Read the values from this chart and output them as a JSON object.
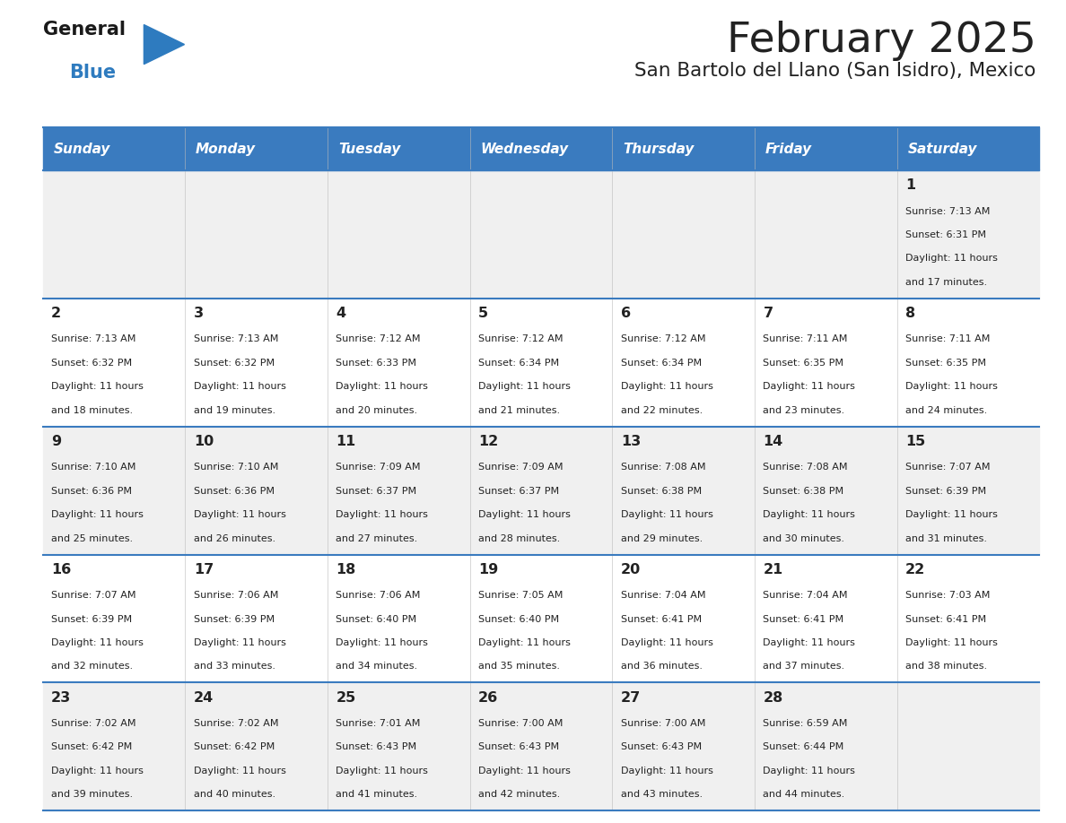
{
  "title": "February 2025",
  "subtitle": "San Bartolo del Llano (San Isidro), Mexico",
  "header_bg": "#3a7bbf",
  "header_text": "#ffffff",
  "header_days": [
    "Sunday",
    "Monday",
    "Tuesday",
    "Wednesday",
    "Thursday",
    "Friday",
    "Saturday"
  ],
  "row_bg_odd": "#f0f0f0",
  "row_bg_even": "#ffffff",
  "divider_color": "#3a7bbf",
  "text_color": "#222222",
  "logo_general_color": "#1a1a1a",
  "logo_blue_color": "#2e7bbf",
  "num_cols": 7,
  "num_rows": 5,
  "calendar": [
    [
      null,
      null,
      null,
      null,
      null,
      null,
      {
        "day": 1,
        "sunrise": "7:13 AM",
        "sunset": "6:31 PM",
        "daylight": "11 hours",
        "daylight2": "and 17 minutes."
      }
    ],
    [
      {
        "day": 2,
        "sunrise": "7:13 AM",
        "sunset": "6:32 PM",
        "daylight": "11 hours",
        "daylight2": "and 18 minutes."
      },
      {
        "day": 3,
        "sunrise": "7:13 AM",
        "sunset": "6:32 PM",
        "daylight": "11 hours",
        "daylight2": "and 19 minutes."
      },
      {
        "day": 4,
        "sunrise": "7:12 AM",
        "sunset": "6:33 PM",
        "daylight": "11 hours",
        "daylight2": "and 20 minutes."
      },
      {
        "day": 5,
        "sunrise": "7:12 AM",
        "sunset": "6:34 PM",
        "daylight": "11 hours",
        "daylight2": "and 21 minutes."
      },
      {
        "day": 6,
        "sunrise": "7:12 AM",
        "sunset": "6:34 PM",
        "daylight": "11 hours",
        "daylight2": "and 22 minutes."
      },
      {
        "day": 7,
        "sunrise": "7:11 AM",
        "sunset": "6:35 PM",
        "daylight": "11 hours",
        "daylight2": "and 23 minutes."
      },
      {
        "day": 8,
        "sunrise": "7:11 AM",
        "sunset": "6:35 PM",
        "daylight": "11 hours",
        "daylight2": "and 24 minutes."
      }
    ],
    [
      {
        "day": 9,
        "sunrise": "7:10 AM",
        "sunset": "6:36 PM",
        "daylight": "11 hours",
        "daylight2": "and 25 minutes."
      },
      {
        "day": 10,
        "sunrise": "7:10 AM",
        "sunset": "6:36 PM",
        "daylight": "11 hours",
        "daylight2": "and 26 minutes."
      },
      {
        "day": 11,
        "sunrise": "7:09 AM",
        "sunset": "6:37 PM",
        "daylight": "11 hours",
        "daylight2": "and 27 minutes."
      },
      {
        "day": 12,
        "sunrise": "7:09 AM",
        "sunset": "6:37 PM",
        "daylight": "11 hours",
        "daylight2": "and 28 minutes."
      },
      {
        "day": 13,
        "sunrise": "7:08 AM",
        "sunset": "6:38 PM",
        "daylight": "11 hours",
        "daylight2": "and 29 minutes."
      },
      {
        "day": 14,
        "sunrise": "7:08 AM",
        "sunset": "6:38 PM",
        "daylight": "11 hours",
        "daylight2": "and 30 minutes."
      },
      {
        "day": 15,
        "sunrise": "7:07 AM",
        "sunset": "6:39 PM",
        "daylight": "11 hours",
        "daylight2": "and 31 minutes."
      }
    ],
    [
      {
        "day": 16,
        "sunrise": "7:07 AM",
        "sunset": "6:39 PM",
        "daylight": "11 hours",
        "daylight2": "and 32 minutes."
      },
      {
        "day": 17,
        "sunrise": "7:06 AM",
        "sunset": "6:39 PM",
        "daylight": "11 hours",
        "daylight2": "and 33 minutes."
      },
      {
        "day": 18,
        "sunrise": "7:06 AM",
        "sunset": "6:40 PM",
        "daylight": "11 hours",
        "daylight2": "and 34 minutes."
      },
      {
        "day": 19,
        "sunrise": "7:05 AM",
        "sunset": "6:40 PM",
        "daylight": "11 hours",
        "daylight2": "and 35 minutes."
      },
      {
        "day": 20,
        "sunrise": "7:04 AM",
        "sunset": "6:41 PM",
        "daylight": "11 hours",
        "daylight2": "and 36 minutes."
      },
      {
        "day": 21,
        "sunrise": "7:04 AM",
        "sunset": "6:41 PM",
        "daylight": "11 hours",
        "daylight2": "and 37 minutes."
      },
      {
        "day": 22,
        "sunrise": "7:03 AM",
        "sunset": "6:41 PM",
        "daylight": "11 hours",
        "daylight2": "and 38 minutes."
      }
    ],
    [
      {
        "day": 23,
        "sunrise": "7:02 AM",
        "sunset": "6:42 PM",
        "daylight": "11 hours",
        "daylight2": "and 39 minutes."
      },
      {
        "day": 24,
        "sunrise": "7:02 AM",
        "sunset": "6:42 PM",
        "daylight": "11 hours",
        "daylight2": "and 40 minutes."
      },
      {
        "day": 25,
        "sunrise": "7:01 AM",
        "sunset": "6:43 PM",
        "daylight": "11 hours",
        "daylight2": "and 41 minutes."
      },
      {
        "day": 26,
        "sunrise": "7:00 AM",
        "sunset": "6:43 PM",
        "daylight": "11 hours",
        "daylight2": "and 42 minutes."
      },
      {
        "day": 27,
        "sunrise": "7:00 AM",
        "sunset": "6:43 PM",
        "daylight": "11 hours",
        "daylight2": "and 43 minutes."
      },
      {
        "day": 28,
        "sunrise": "6:59 AM",
        "sunset": "6:44 PM",
        "daylight": "11 hours",
        "daylight2": "and 44 minutes."
      },
      null
    ]
  ],
  "figsize": [
    11.88,
    9.18
  ],
  "dpi": 100
}
